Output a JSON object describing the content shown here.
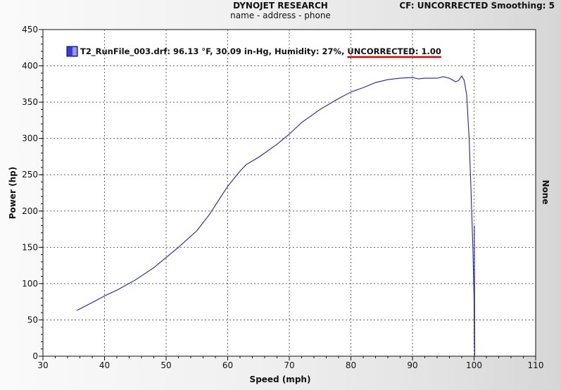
{
  "header": {
    "company": "DYNOJET RESEARCH",
    "subtitle": "name - address - phone",
    "cf_text": "CF: UNCORRECTED  Smoothing: 5"
  },
  "chart_data": {
    "type": "line",
    "xlabel": "Speed (mph)",
    "ylabel": "Power (hp)",
    "right_label": "None",
    "xlim": [
      30,
      110
    ],
    "ylim": [
      0,
      450
    ],
    "xticks": [
      30,
      40,
      50,
      60,
      70,
      80,
      90,
      100,
      110
    ],
    "yticks": [
      0,
      50,
      100,
      150,
      200,
      250,
      300,
      350,
      400,
      450
    ],
    "grid": true,
    "legend_position": "top-left",
    "line_color": "#2020c0",
    "series": [
      {
        "name": "T2_RunFile_003.drf: 96.13 °F, 30.09 in-Hg, Humidity: 27%, ",
        "legend_suffix": "UNCORRECTED: 1.00",
        "x": [
          35.5,
          38,
          40,
          42,
          45,
          48,
          50,
          52,
          55,
          57,
          60,
          62,
          63,
          65,
          68,
          70,
          72,
          75,
          78,
          80,
          82,
          84,
          86,
          88,
          90,
          91,
          92,
          94,
          95,
          96,
          97,
          97.5,
          98,
          98.4,
          98.8,
          99.2,
          99.5,
          99.8,
          100,
          100.05,
          100.1,
          100.05,
          100.1
        ],
        "y": [
          63,
          74,
          83,
          91,
          105,
          122,
          136,
          150,
          173,
          195,
          234,
          255,
          264,
          274,
          292,
          306,
          322,
          340,
          355,
          364,
          370,
          377,
          381,
          383,
          384,
          382,
          383,
          383,
          385,
          383,
          378,
          380,
          386,
          380,
          360,
          300,
          230,
          150,
          80,
          20,
          0,
          180,
          2
        ]
      }
    ]
  }
}
